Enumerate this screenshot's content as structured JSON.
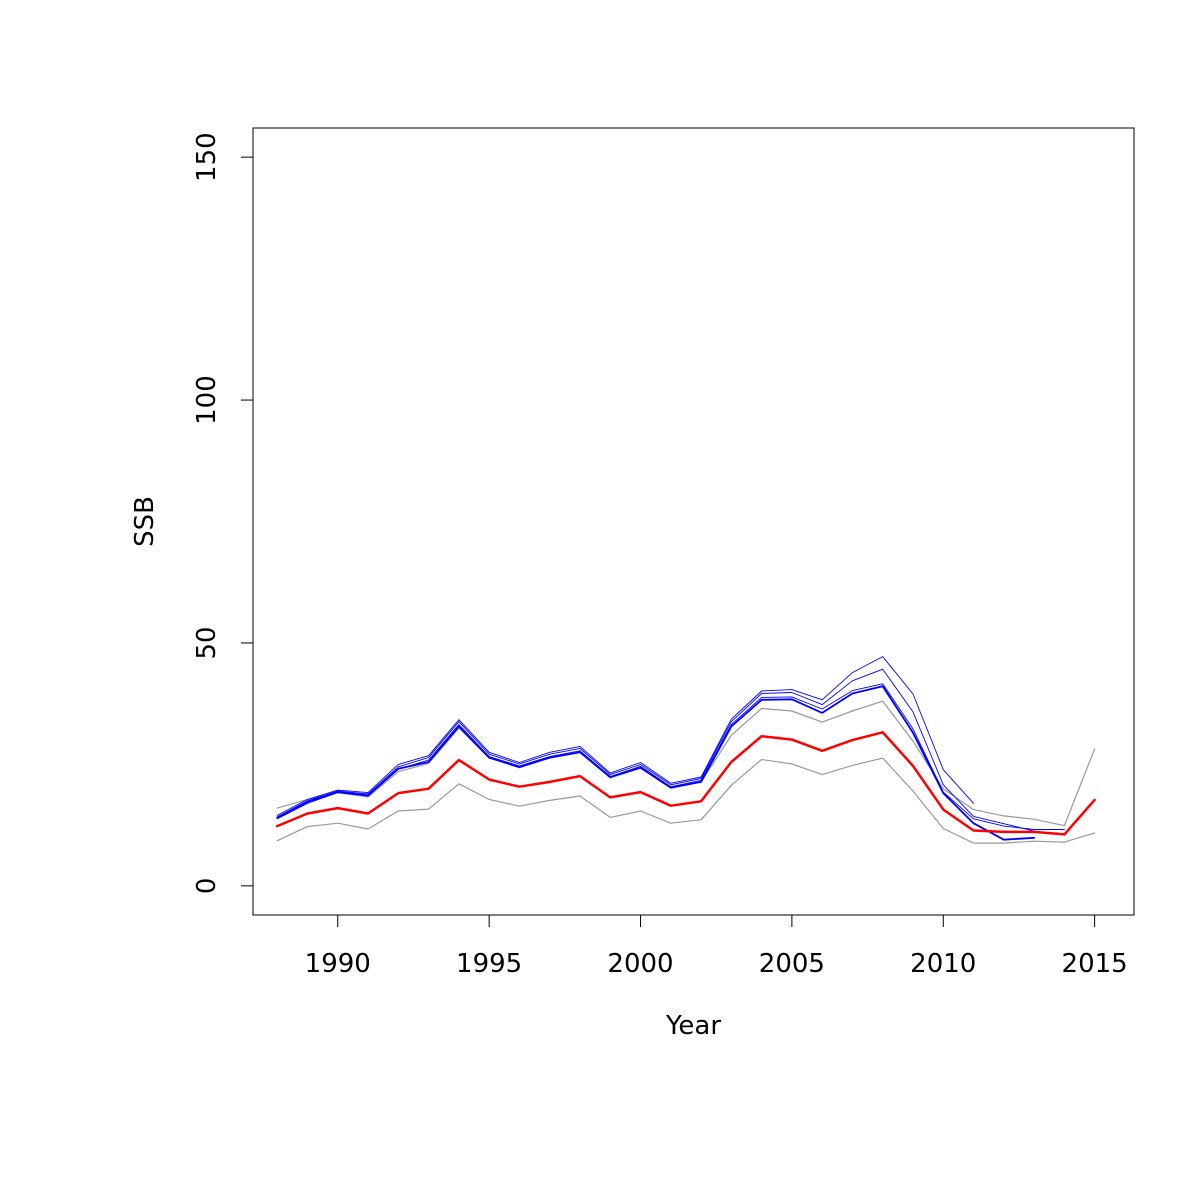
{
  "chart_data": {
    "type": "line",
    "title": "",
    "xlabel": "Year",
    "ylabel": "SSB",
    "xlim": [
      1987.2,
      2016.3
    ],
    "ylim": [
      -6,
      156
    ],
    "xticks": [
      "1990",
      "1995",
      "2000",
      "2005",
      "2010",
      "2015"
    ],
    "yticks": [
      "0",
      "50",
      "100",
      "150"
    ],
    "grid": false,
    "legend": "none",
    "colors": {
      "main": "#ff0000",
      "retro": "#0000ff",
      "ci": "#999999",
      "axis": "#000000"
    },
    "x": [
      1988,
      1989,
      1990,
      1991,
      1992,
      1993,
      1994,
      1995,
      1996,
      1997,
      1998,
      1999,
      2000,
      2001,
      2002,
      2003,
      2004,
      2005,
      2006,
      2007,
      2008,
      2009,
      2010,
      2011,
      2012,
      2013,
      2014,
      2015
    ],
    "series": [
      {
        "role": "ci_upper",
        "color": "#999999",
        "width": 1.2,
        "values": [
          16,
          17.8,
          19.2,
          18.3,
          23.5,
          25.2,
          32.5,
          26.3,
          24.6,
          26.3,
          27.5,
          22.2,
          24.3,
          20.2,
          21.4,
          31,
          36.5,
          36,
          33.7,
          36,
          38,
          29.8,
          20,
          15.7,
          14.4,
          13.7,
          12.4,
          28.2
        ]
      },
      {
        "role": "ci_lower",
        "color": "#999999",
        "width": 1.2,
        "values": [
          9.3,
          12.2,
          12.9,
          11.7,
          15.4,
          15.8,
          21,
          17.8,
          16.4,
          17.6,
          18.5,
          14.1,
          15.4,
          12.9,
          13.6,
          20.7,
          26,
          25.1,
          22.9,
          24.8,
          26.3,
          19.5,
          11.8,
          8.8,
          8.8,
          9.2,
          9,
          10.9
        ]
      },
      {
        "role": "retro",
        "color": "#0000ff",
        "width": 0.9,
        "values": [
          14.5,
          17.8,
          19.7,
          19.2,
          25,
          26.8,
          34.2,
          27.5,
          25.4,
          27.5,
          28.7,
          23.2,
          25.4,
          21.1,
          22.4,
          34.3,
          40.1,
          40.4,
          38.3,
          43.9,
          47.2,
          39.5,
          23.9,
          17,
          null,
          null,
          null,
          null
        ]
      },
      {
        "role": "retro",
        "color": "#0000ff",
        "width": 0.9,
        "values": [
          14.2,
          17.5,
          19.5,
          18.9,
          24.5,
          26.4,
          33.8,
          27.1,
          25.1,
          27.1,
          28.3,
          22.9,
          25,
          20.8,
          22.1,
          33.8,
          39.6,
          39.8,
          37.3,
          42.2,
          44.6,
          35.8,
          20.8,
          14.3,
          12.8,
          11.3,
          null,
          null
        ]
      },
      {
        "role": "retro",
        "color": "#0000ff",
        "width": 0.9,
        "values": [
          13.8,
          17,
          19.2,
          18.5,
          24,
          25.9,
          33.2,
          26.6,
          24.7,
          26.6,
          27.8,
          22.5,
          24.6,
          20.4,
          21.7,
          33.2,
          38.8,
          38.9,
          36.4,
          40.2,
          41.6,
          32.3,
          19.3,
          13.8,
          12.3,
          11.6,
          11.6,
          null
        ]
      },
      {
        "role": "retro",
        "color": "#0000ff",
        "width": 1.8,
        "values": [
          14,
          17.3,
          19.3,
          18.6,
          24.1,
          25.5,
          32.8,
          26.4,
          24.4,
          26.4,
          27.5,
          22.4,
          24.3,
          20.2,
          21.4,
          32.8,
          38.3,
          38.4,
          35.6,
          39.6,
          41.1,
          31.5,
          19.1,
          12.9,
          9.5,
          9.9,
          null,
          null
        ]
      },
      {
        "role": "main",
        "color": "#ff0000",
        "width": 2.5,
        "values": [
          12.3,
          14.9,
          16,
          14.9,
          19.1,
          20,
          25.9,
          21.9,
          20.4,
          21.4,
          22.6,
          18.2,
          19.3,
          16.5,
          17.4,
          25.5,
          30.8,
          30.1,
          27.8,
          30,
          31.6,
          24.7,
          15.7,
          11.4,
          11.1,
          11.1,
          10.6,
          17.7
        ]
      }
    ]
  }
}
